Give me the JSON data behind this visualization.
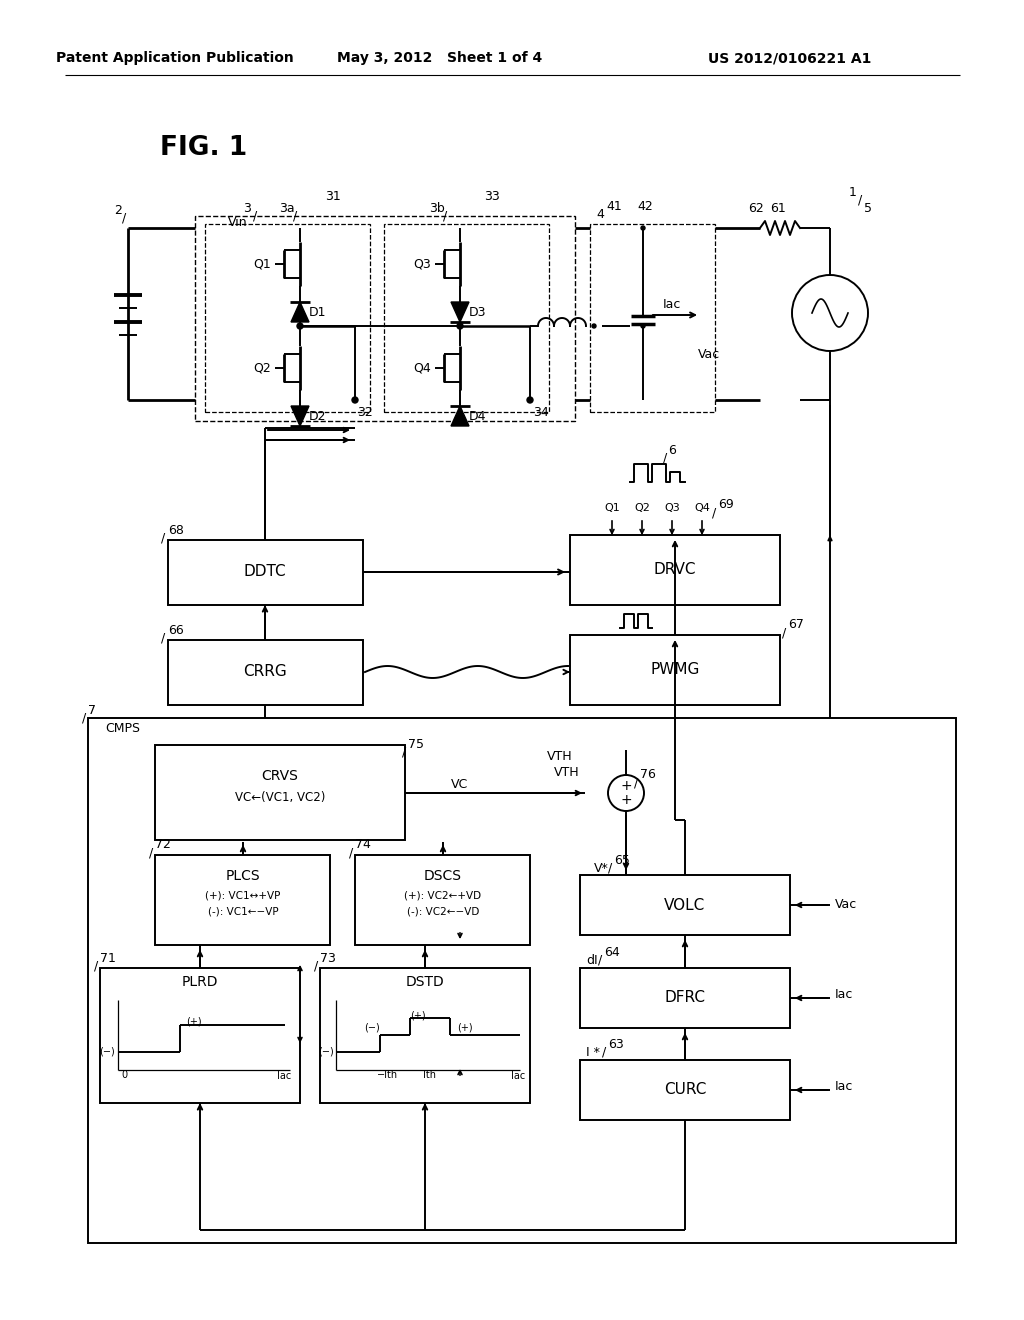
{
  "bg": "#ffffff",
  "lc": "#000000",
  "header_left": "Patent Application Publication",
  "header_mid": "May 3, 2012   Sheet 1 of 4",
  "header_right": "US 2012/0106221 A1",
  "fig_label": "FIG. 1"
}
